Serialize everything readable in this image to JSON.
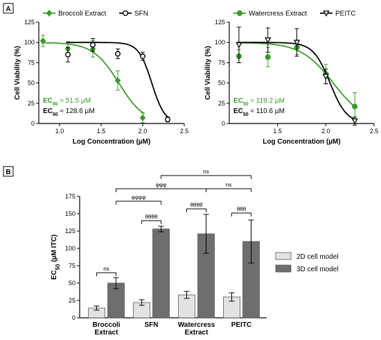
{
  "panel_labels": [
    "A",
    "B"
  ],
  "colors": {
    "green": "#3a9a2c",
    "black": "#000000",
    "light_bar": "#e2e2e2",
    "dark_bar": "#6e6e6e"
  },
  "chart_data": [
    {
      "type": "scatter",
      "panel": "A",
      "xlabel": "Log Concentration (µM)",
      "ylabel": "Cell Viability (%)",
      "xlim": [
        0.75,
        2.5
      ],
      "ylim": [
        0,
        125
      ],
      "xticks": [
        "1.0",
        "1.5",
        "2.0",
        "2.5"
      ],
      "yticks": [
        "0",
        "25",
        "50",
        "75",
        "100",
        "125"
      ],
      "grid": false,
      "legend": "top",
      "ec50_labels": {
        "sub": "50",
        "green_prefix": "EC",
        "green_value": " ≈ 51.5 µM",
        "black_prefix": "EC",
        "black_value": " ≈ 128.6 µM"
      },
      "series": [
        {
          "name": "Broccoli Extract",
          "color": "#3a9a2c",
          "marker": "filled-diamond",
          "x": [
            0.8,
            1.1,
            1.4,
            1.7,
            2.0
          ],
          "y": [
            102,
            92,
            92,
            53,
            7
          ],
          "err": [
            7,
            9,
            10,
            12,
            6
          ],
          "fit": {
            "top": 100,
            "bottom": 0,
            "logec50": 1.712,
            "hill": -2.8
          }
        },
        {
          "name": "SFN",
          "color": "#000000",
          "marker": "open-circle",
          "x": [
            1.1,
            1.4,
            1.7,
            2.0,
            2.3
          ],
          "y": [
            85,
            97,
            86,
            83,
            5
          ],
          "err": [
            9,
            8,
            6,
            5,
            3
          ],
          "fit": {
            "top": 100,
            "bottom": 0,
            "logec50": 2.109,
            "hill": -5.5
          }
        }
      ]
    },
    {
      "type": "scatter",
      "panel": "A",
      "xlabel": "Log Concentration (µM)",
      "ylabel": "Cell Viability (%)",
      "xlim": [
        1.0,
        2.5
      ],
      "ylim": [
        0,
        125
      ],
      "xticks": [
        "1.5",
        "2.0",
        "2.5"
      ],
      "yticks": [
        "0",
        "25",
        "50",
        "75",
        "100",
        "125"
      ],
      "grid": false,
      "legend": "top",
      "ec50_labels": {
        "sub": "50",
        "green_prefix": "EC",
        "green_value": " ≈ 119.2 µM",
        "black_prefix": "EC",
        "black_value": " ≈ 110.6 µM"
      },
      "series": [
        {
          "name": "Watercress Extract",
          "color": "#3a9a2c",
          "marker": "filled-circle",
          "x": [
            1.1,
            1.4,
            1.7,
            2.0,
            2.3
          ],
          "y": [
            83,
            82,
            94,
            61,
            21
          ],
          "err": [
            8,
            12,
            9,
            12,
            17
          ],
          "fit": {
            "top": 100,
            "bottom": 0,
            "logec50": 2.076,
            "hill": -2.6
          }
        },
        {
          "name": "PEITC",
          "color": "#000000",
          "marker": "open-triangle-down",
          "x": [
            1.1,
            1.4,
            1.7,
            2.0,
            2.3
          ],
          "y": [
            97,
            103,
            100,
            58,
            3
          ],
          "err": [
            22,
            15,
            17,
            9,
            5
          ],
          "fit": {
            "top": 100,
            "bottom": 0,
            "logec50": 2.044,
            "hill": -5.0
          }
        }
      ]
    },
    {
      "type": "bar",
      "panel": "B",
      "ylabel_main": "EC",
      "ylabel_sub": "50",
      "ylabel_rest": " (µM ITC)",
      "ylim": [
        0,
        175
      ],
      "yticks": [
        "0",
        "25",
        "50",
        "75",
        "100",
        "125",
        "150",
        "175"
      ],
      "categories": [
        [
          "Broccoli",
          "Extract"
        ],
        [
          "SFN"
        ],
        [
          "Watercress",
          "Extract"
        ],
        [
          "PEITC"
        ]
      ],
      "legend": "right",
      "series": [
        {
          "name": "2D cell model",
          "color": "#e2e2e2",
          "values": [
            14,
            22,
            33,
            30
          ],
          "err": [
            3,
            4,
            5,
            6
          ]
        },
        {
          "name": "3D cell model",
          "color": "#6e6e6e",
          "values": [
            50,
            128,
            121,
            110
          ],
          "err": [
            8,
            4,
            28,
            31
          ]
        }
      ],
      "significance": [
        {
          "label": "ns",
          "from": [
            0,
            0
          ],
          "to": [
            0,
            1
          ],
          "y": 65
        },
        {
          "label": "θθθθ",
          "from": [
            1,
            0
          ],
          "to": [
            1,
            1
          ],
          "y": 140
        },
        {
          "label": "θθθθ",
          "from": [
            2,
            0
          ],
          "to": [
            2,
            1
          ],
          "y": 157
        },
        {
          "label": "θθθ",
          "from": [
            3,
            0
          ],
          "to": [
            3,
            1
          ],
          "y": 151
        },
        {
          "label": "φφφφ",
          "from": [
            0,
            1
          ],
          "to": [
            1,
            1
          ],
          "y": 168
        },
        {
          "label": "φφφ",
          "from": [
            0,
            1
          ],
          "to": [
            2,
            1
          ],
          "y": 186
        },
        {
          "label": "ns",
          "from": [
            2,
            1
          ],
          "to": [
            3,
            1
          ],
          "y": 186
        },
        {
          "label": "ns",
          "from": [
            1,
            1
          ],
          "to": [
            3,
            1
          ],
          "y": 205
        }
      ]
    }
  ]
}
